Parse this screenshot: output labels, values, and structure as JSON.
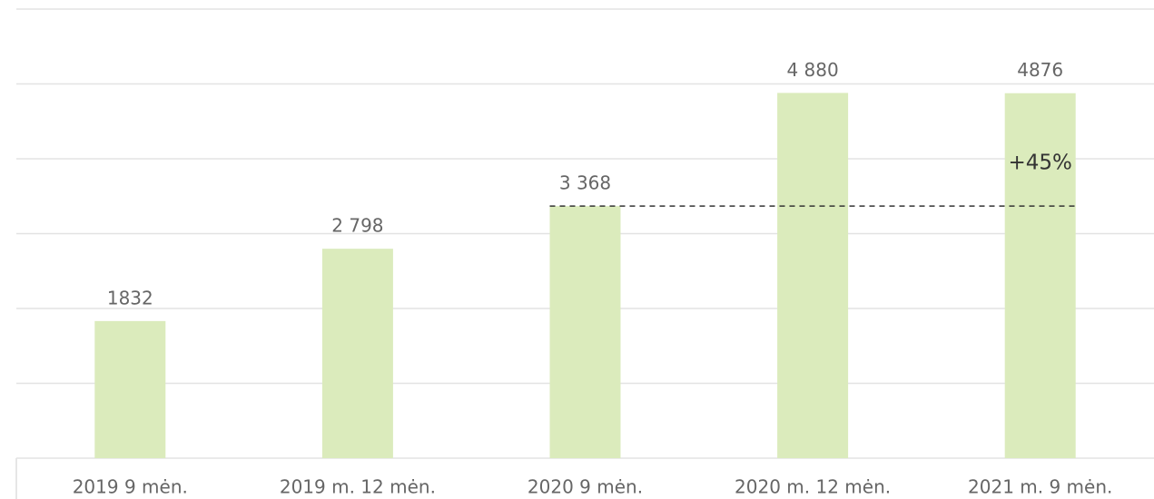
{
  "chart_data": {
    "type": "bar",
    "categories": [
      "2019 9 mėn.",
      "2019 m. 12 mėn.",
      "2020 9 mėn.",
      "2020 m. 12 mėn.",
      "2021 m. 9 mėn."
    ],
    "values": [
      1832,
      2798,
      3368,
      4880,
      4876
    ],
    "value_labels": [
      "1832",
      "2 798",
      "3 368",
      "4 880",
      "4876"
    ],
    "color": "#dbebbc",
    "ylim": [
      0,
      6000
    ],
    "yticks": [
      0,
      1000,
      2000,
      3000,
      4000,
      5000,
      6000
    ],
    "grid": true,
    "annotation": "+45%"
  }
}
